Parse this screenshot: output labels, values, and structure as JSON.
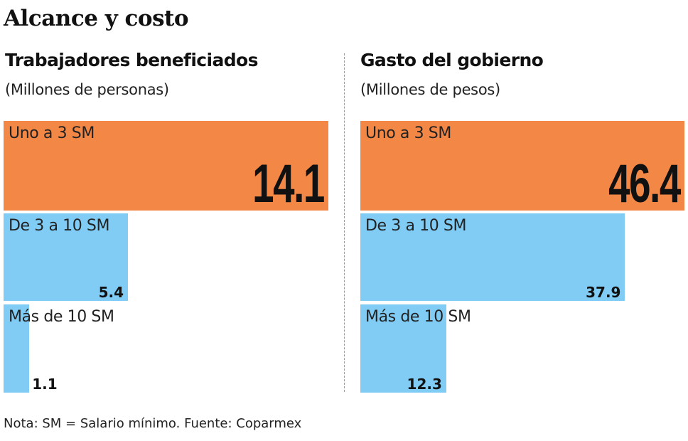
{
  "title": "Alcance y costo",
  "note": "Nota: SM = Salario mínimo. Fuente: Coparmex",
  "colors": {
    "orange": "#F28746",
    "blue": "#80CCF4"
  },
  "chart_data": [
    {
      "type": "bar",
      "orientation": "horizontal",
      "title": "Trabajadores beneficiados",
      "subtitle": "(Millones de personas)",
      "categories": [
        "Uno a 3 SM",
        "De 3 a 10 SM",
        "Más de 10 SM"
      ],
      "values": [
        14.1,
        5.4,
        1.1
      ],
      "labels": [
        "14.1",
        "5.4",
        "1.1"
      ],
      "bar_colors": [
        "#F28746",
        "#80CCF4",
        "#80CCF4"
      ]
    },
    {
      "type": "bar",
      "orientation": "horizontal",
      "title": "Gasto del gobierno",
      "subtitle": "(Millones de pesos)",
      "categories": [
        "Uno a 3 SM",
        "De 3 a 10 SM",
        "Más de 10 SM"
      ],
      "values": [
        46.4,
        37.9,
        12.3
      ],
      "labels": [
        "46.4",
        "37.9",
        "12.3"
      ],
      "bar_colors": [
        "#F28746",
        "#80CCF4",
        "#80CCF4"
      ]
    }
  ]
}
